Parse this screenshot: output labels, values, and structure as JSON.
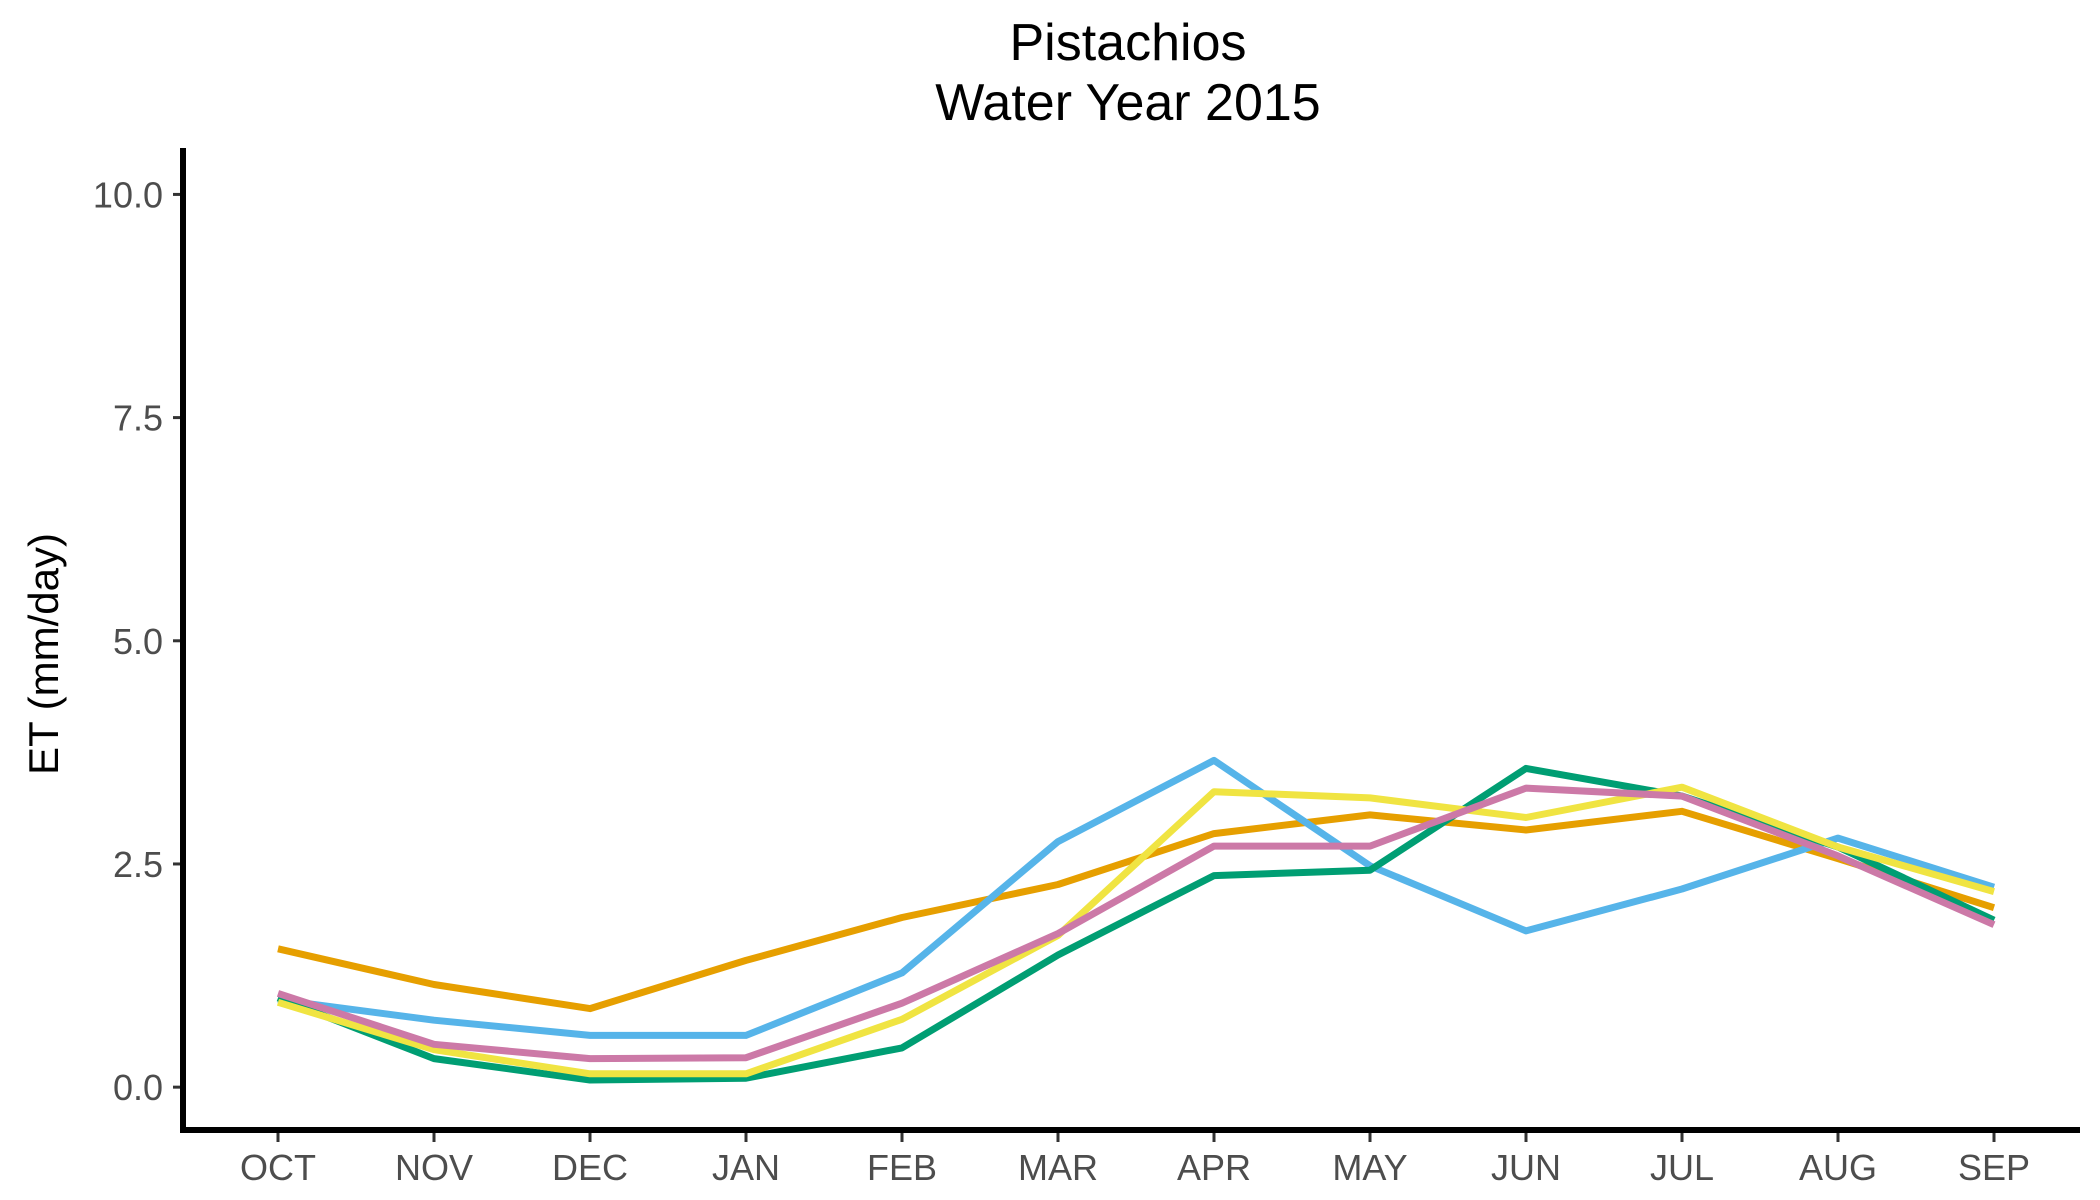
{
  "chart_data": {
    "type": "line",
    "title": "Pistachios",
    "subtitle": "Water Year 2015",
    "xlabel": "",
    "ylabel": "ET (mm/day)",
    "categories": [
      "OCT",
      "NOV",
      "DEC",
      "JAN",
      "FEB",
      "MAR",
      "APR",
      "MAY",
      "JUN",
      "JUL",
      "AUG",
      "SEP"
    ],
    "y_ticks": [
      "0.0",
      "2.5",
      "5.0",
      "7.5",
      "10.0"
    ],
    "ylim": [
      -0.48,
      10.52
    ],
    "grid": false,
    "legend": "none",
    "series": [
      {
        "color": "#E69F00",
        "values": [
          1.55,
          1.15,
          0.88,
          1.42,
          1.9,
          2.27,
          2.84,
          3.05,
          2.88,
          3.09,
          2.56,
          2.01
        ]
      },
      {
        "color": "#56B4E9",
        "values": [
          0.98,
          0.75,
          0.58,
          0.58,
          1.28,
          2.75,
          3.66,
          2.48,
          1.75,
          2.22,
          2.79,
          2.24
        ]
      },
      {
        "color": "#009E73",
        "values": [
          1.0,
          0.32,
          0.08,
          0.1,
          0.44,
          1.48,
          2.37,
          2.43,
          3.57,
          3.26,
          2.69,
          1.87
        ]
      },
      {
        "color": "#F0E442",
        "values": [
          0.95,
          0.42,
          0.15,
          0.15,
          0.76,
          1.7,
          3.31,
          3.24,
          3.02,
          3.36,
          2.69,
          2.19
        ]
      },
      {
        "color": "#CC79A7",
        "values": [
          1.05,
          0.48,
          0.32,
          0.33,
          0.94,
          1.72,
          2.7,
          2.7,
          3.35,
          3.26,
          2.59,
          1.82
        ]
      }
    ]
  }
}
